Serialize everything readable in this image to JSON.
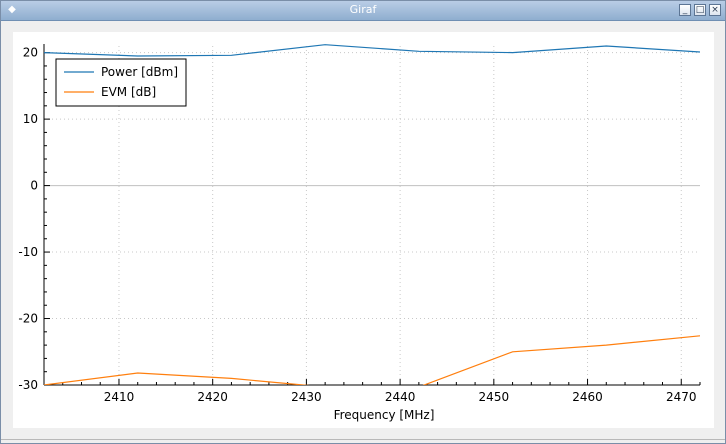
{
  "window": {
    "title": "Giraf",
    "minimize_label": "_",
    "maximize_label": "□",
    "close_label": "×"
  },
  "chart_data": {
    "type": "line",
    "xlabel": "Frequency [MHz]",
    "ylabel": "",
    "xlim": [
      2402,
      2472
    ],
    "ylim": [
      -30,
      21
    ],
    "xticks": [
      2410,
      2420,
      2430,
      2440,
      2450,
      2460,
      2470
    ],
    "yticks": [
      20,
      10,
      0,
      -10,
      -20,
      -30
    ],
    "grid": true,
    "legend_position": "top-left",
    "x": [
      2402,
      2412,
      2422,
      2432,
      2442,
      2452,
      2462,
      2472
    ],
    "series": [
      {
        "name": "Power [dBm]",
        "color": "#1f77b4",
        "values": [
          20.0,
          19.5,
          19.6,
          21.2,
          20.2,
          20.0,
          21.0,
          20.1
        ]
      },
      {
        "name": "EVM [dB]",
        "color": "#ff7f0e",
        "values": [
          -30.0,
          -28.2,
          -29.0,
          -30.3,
          -30.3,
          -25.0,
          -24.0,
          -22.6
        ]
      }
    ]
  }
}
